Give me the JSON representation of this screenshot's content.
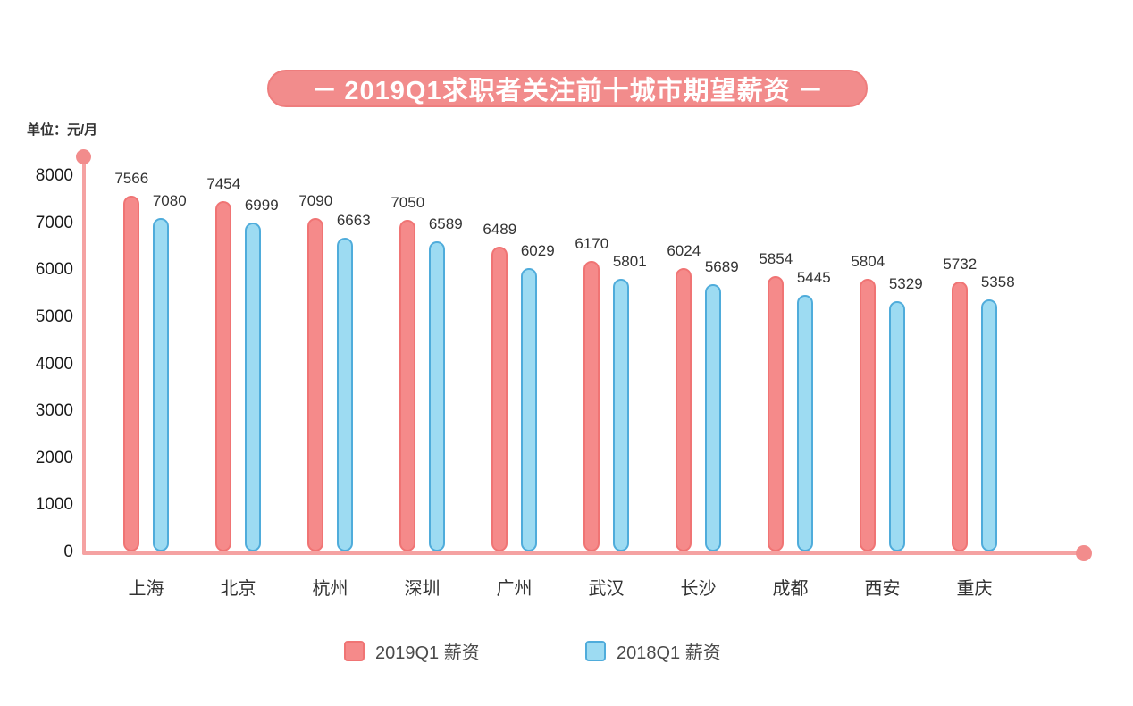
{
  "header": {
    "dash": "–",
    "title": "2019Q1求职者关注前十城市期望薪资"
  },
  "unit_label": "单位：元/月",
  "colors": {
    "banner_bg": "#f28c8c",
    "banner_border": "#ee7d7d",
    "banner_text": "#ffffff",
    "axis": "#f5a2a2",
    "axis_dot": "#f28c8c",
    "value_label_text": "#333333",
    "category_label_text": "#333333",
    "ytick_text": "#1a1a1a",
    "legend_text": "#4a4a4a",
    "background": "#ffffff"
  },
  "chart_data": {
    "type": "bar",
    "title": "2019Q1求职者关注前十城市期望薪资",
    "ylabel": "单位：元/月",
    "categories": [
      "上海",
      "北京",
      "杭州",
      "深圳",
      "广州",
      "武汉",
      "长沙",
      "成都",
      "西安",
      "重庆"
    ],
    "series": [
      {
        "name": "2019Q1 薪资",
        "color": "#f58a8a",
        "border_color": "#f07474",
        "values": [
          7566,
          7454,
          7090,
          7050,
          6489,
          6170,
          6024,
          5854,
          5804,
          5732
        ]
      },
      {
        "name": "2018Q1 薪资",
        "color": "#9ddbf2",
        "border_color": "#4facdb",
        "values": [
          7080,
          6999,
          6663,
          6589,
          6029,
          5801,
          5689,
          5445,
          5329,
          5358
        ]
      }
    ],
    "ylim": [
      0,
      8000
    ],
    "ytick_step": 1000,
    "yticks": [
      0,
      1000,
      2000,
      3000,
      4000,
      5000,
      6000,
      7000,
      8000
    ],
    "grid": false,
    "data_labels": true,
    "legend_position": "bottom",
    "bar_shape": "pill"
  }
}
